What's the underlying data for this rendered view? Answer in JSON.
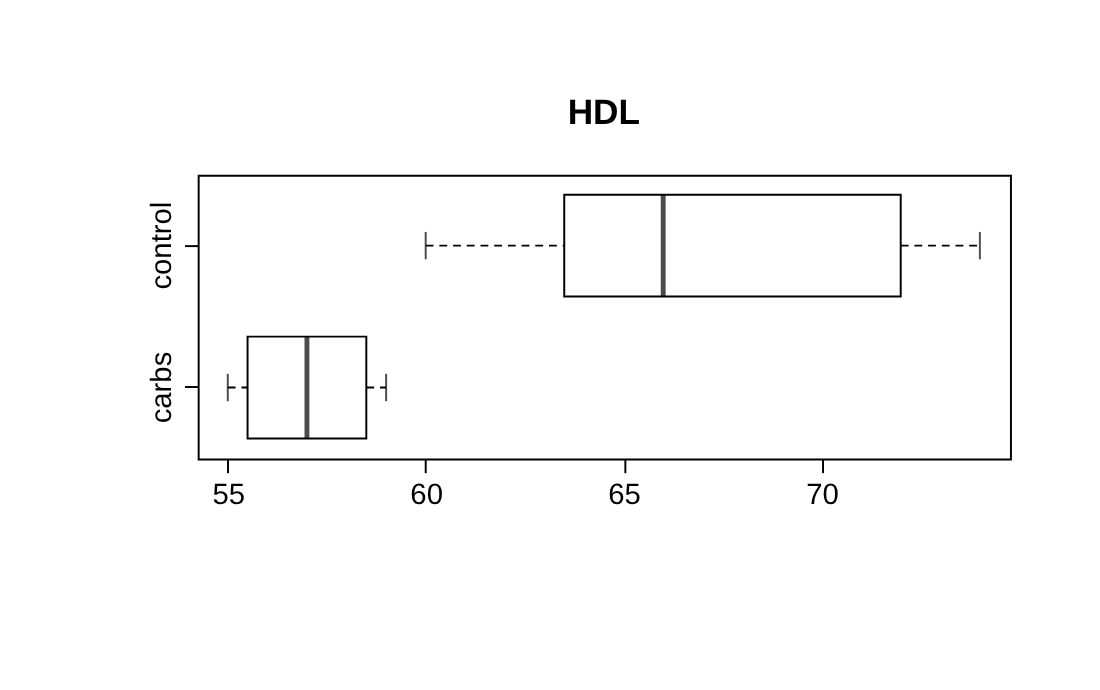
{
  "chart_data": {
    "type": "box",
    "title": "HDL",
    "orientation": "horizontal",
    "categories": [
      "control",
      "carbs"
    ],
    "boxes": [
      {
        "low": 60,
        "q1": 63.5,
        "median": 66,
        "q3": 72,
        "high": 74
      },
      {
        "low": 55,
        "q1": 55.5,
        "median": 57,
        "q3": 58.5,
        "high": 59
      }
    ],
    "xlim": [
      54.24,
      74.76
    ],
    "xticks": [
      55,
      60,
      65,
      70
    ],
    "grid": false,
    "line_style": "dashed"
  }
}
